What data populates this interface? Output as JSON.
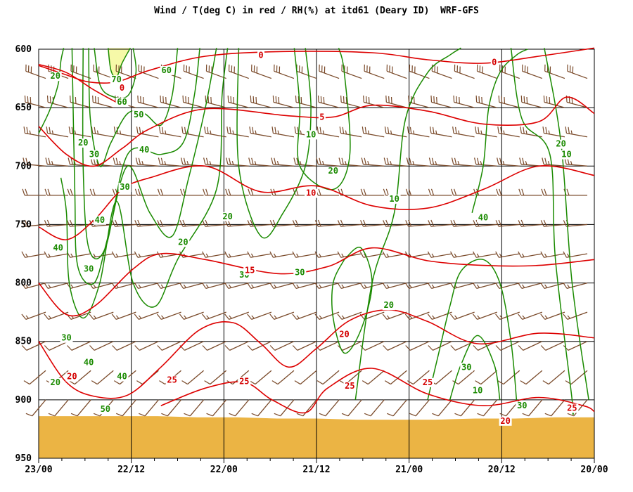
{
  "title": "Wind / T(deg C) in red / RH(%) at itd61 (Deary ID)  WRF-GFS",
  "colors": {
    "temperature": "#dd0000",
    "rh": "#1a8a00",
    "wind": "#7a4a2a",
    "terrain": "#ebb444",
    "saturated": "#f6f9a8",
    "grid": "#000000"
  },
  "chart_data": {
    "type": "time-height cross-section",
    "y_axis": {
      "unit": "hPa",
      "range": [
        950,
        600
      ],
      "ticks": [
        600,
        650,
        700,
        750,
        800,
        850,
        900,
        950
      ]
    },
    "x_axis": {
      "range_label": [
        "23/00",
        "20/00"
      ],
      "tick_labels": [
        "23/00",
        "22/12",
        "22/00",
        "21/12",
        "21/00",
        "20/12",
        "20/00"
      ]
    },
    "terrain_top_hPa": [
      914,
      914,
      914,
      914,
      915,
      915,
      916,
      916,
      917,
      917,
      917,
      916,
      916,
      915,
      915
    ],
    "temperature_contours": [
      {
        "value": -5,
        "points": [
          [
            0,
            613
          ],
          [
            5,
            620
          ],
          [
            10,
            635
          ],
          [
            15,
            648
          ]
        ]
      },
      {
        "value": 0,
        "points": [
          [
            0,
            614
          ],
          [
            5,
            622
          ],
          [
            9,
            628
          ],
          [
            14,
            628
          ],
          [
            20,
            618
          ],
          [
            30,
            606
          ],
          [
            44,
            602
          ],
          [
            60,
            603
          ],
          [
            70,
            609
          ],
          [
            80,
            612
          ],
          [
            90,
            606
          ],
          [
            100,
            599
          ]
        ]
      },
      {
        "value": 5,
        "points": [
          [
            0,
            666
          ],
          [
            5,
            690
          ],
          [
            10,
            700
          ],
          [
            15,
            685
          ],
          [
            20,
            668
          ],
          [
            30,
            651
          ],
          [
            45,
            657
          ],
          [
            53,
            658
          ],
          [
            60,
            648
          ],
          [
            70,
            653
          ],
          [
            80,
            664
          ],
          [
            90,
            662
          ],
          [
            95,
            641
          ],
          [
            100,
            655
          ]
        ]
      },
      {
        "value": 10,
        "points": [
          [
            0,
            752
          ],
          [
            5,
            763
          ],
          [
            10,
            746
          ],
          [
            15,
            720
          ],
          [
            20,
            710
          ],
          [
            30,
            700
          ],
          [
            40,
            722
          ],
          [
            50,
            717
          ],
          [
            60,
            734
          ],
          [
            70,
            736
          ],
          [
            80,
            720
          ],
          [
            90,
            700
          ],
          [
            100,
            708
          ]
        ]
      },
      {
        "value": 15,
        "points": [
          [
            0,
            800
          ],
          [
            5,
            827
          ],
          [
            10,
            820
          ],
          [
            17,
            788
          ],
          [
            22,
            775
          ],
          [
            30,
            780
          ],
          [
            43,
            792
          ],
          [
            52,
            786
          ],
          [
            60,
            770
          ],
          [
            70,
            781
          ],
          [
            80,
            785
          ],
          [
            90,
            785
          ],
          [
            100,
            780
          ]
        ]
      },
      {
        "value": 20,
        "points": [
          [
            0,
            850
          ],
          [
            5,
            885
          ],
          [
            10,
            897
          ],
          [
            16,
            896
          ],
          [
            22,
            872
          ],
          [
            29,
            840
          ],
          [
            35,
            834
          ],
          [
            40,
            852
          ],
          [
            45,
            872
          ],
          [
            50,
            856
          ],
          [
            56,
            832
          ],
          [
            63,
            823
          ],
          [
            70,
            833
          ],
          [
            79,
            852
          ],
          [
            90,
            843
          ],
          [
            100,
            847
          ]
        ]
      },
      {
        "value": 25,
        "points": [
          [
            22,
            905
          ],
          [
            30,
            890
          ],
          [
            37,
            885
          ],
          [
            42,
            900
          ],
          [
            48,
            911
          ],
          [
            52,
            890
          ],
          [
            60,
            873
          ],
          [
            70,
            895
          ],
          [
            80,
            905
          ],
          [
            90,
            898
          ],
          [
            98,
            905
          ],
          [
            100,
            910
          ]
        ]
      }
    ],
    "temperature_labels": [
      {
        "text": "0",
        "x": 15,
        "p": 633
      },
      {
        "text": "0",
        "x": 40,
        "p": 605
      },
      {
        "text": "0",
        "x": 82,
        "p": 611
      },
      {
        "text": "5",
        "x": 51,
        "p": 658
      },
      {
        "text": "10",
        "x": 49,
        "p": 723
      },
      {
        "text": "15",
        "x": 38,
        "p": 789
      },
      {
        "text": "20",
        "x": 6,
        "p": 880
      },
      {
        "text": "20",
        "x": 55,
        "p": 844
      },
      {
        "text": "25",
        "x": 24,
        "p": 883
      },
      {
        "text": "25",
        "x": 37,
        "p": 884
      },
      {
        "text": "25",
        "x": 56,
        "p": 888
      },
      {
        "text": "25",
        "x": 70,
        "p": 885
      },
      {
        "text": "25",
        "x": 96,
        "p": 907
      },
      {
        "text": "20",
        "x": 84,
        "p": 918
      }
    ],
    "rh_contours": [
      {
        "value": 70,
        "points": [
          [
            12.5,
            599
          ],
          [
            13,
            618
          ],
          [
            14,
            624
          ],
          [
            15,
            612
          ],
          [
            16.5,
            599
          ]
        ]
      },
      {
        "value": 60,
        "points": [
          [
            10,
            599
          ],
          [
            11,
            630
          ],
          [
            13,
            640
          ],
          [
            16,
            640
          ],
          [
            17.5,
            620
          ],
          [
            17,
            599
          ]
        ]
      },
      {
        "value": 20,
        "points": [
          [
            0,
            672
          ],
          [
            2,
            652
          ],
          [
            3.5,
            630
          ],
          [
            4,
            610
          ],
          [
            4.5,
            599
          ]
        ]
      },
      {
        "value": 50,
        "points": [
          [
            9,
            599
          ],
          [
            9.3,
            660
          ],
          [
            11,
            700
          ],
          [
            13,
            680
          ],
          [
            16,
            655
          ],
          [
            19,
            655
          ],
          [
            22,
            665
          ],
          [
            24,
            640
          ],
          [
            25,
            599
          ]
        ]
      },
      {
        "value": 40,
        "points": [
          [
            8,
            599
          ],
          [
            8,
            700
          ],
          [
            9,
            770
          ],
          [
            12,
            770
          ],
          [
            16,
            690
          ],
          [
            22,
            690
          ],
          [
            26,
            680
          ],
          [
            28,
            640
          ],
          [
            29,
            599
          ]
        ]
      },
      {
        "value": 30,
        "points": [
          [
            6,
            599
          ],
          [
            6.5,
            720
          ],
          [
            7,
            785
          ],
          [
            10,
            800
          ],
          [
            12.5,
            760
          ],
          [
            16,
            700
          ],
          [
            20,
            740
          ],
          [
            24,
            760
          ],
          [
            27,
            710
          ],
          [
            30,
            650
          ],
          [
            32,
            599
          ]
        ]
      },
      {
        "value": 20,
        "points": [
          [
            4,
            710
          ],
          [
            5,
            740
          ],
          [
            5.5,
            800
          ],
          [
            8,
            830
          ],
          [
            11,
            800
          ],
          [
            14,
            730
          ],
          [
            17,
            800
          ],
          [
            21,
            820
          ],
          [
            25,
            780
          ],
          [
            32,
            720
          ],
          [
            33,
            640
          ],
          [
            34,
            599
          ]
        ]
      },
      {
        "value": 10,
        "points": [
          [
            36,
            599
          ],
          [
            36,
            700
          ],
          [
            40,
            760
          ],
          [
            44,
            740
          ],
          [
            48,
            700
          ],
          [
            49,
            650
          ],
          [
            48,
            599
          ]
        ]
      },
      {
        "value": 20,
        "points": [
          [
            46,
            599
          ],
          [
            47,
            650
          ],
          [
            47,
            700
          ],
          [
            53,
            720
          ],
          [
            56,
            690
          ],
          [
            55,
            620
          ],
          [
            54,
            599
          ]
        ]
      },
      {
        "value": 10,
        "points": [
          [
            57,
            900
          ],
          [
            60,
            800
          ],
          [
            64,
            740
          ],
          [
            66,
            660
          ],
          [
            70,
            620
          ],
          [
            74,
            605
          ],
          [
            76,
            599
          ]
        ]
      },
      {
        "value": 20,
        "points": [
          [
            85,
            599
          ],
          [
            87,
            660
          ],
          [
            92,
            690
          ],
          [
            93,
            780
          ],
          [
            96,
            900
          ],
          [
            96,
            910
          ]
        ]
      },
      {
        "value": 10,
        "points": [
          [
            91,
            599
          ],
          [
            94,
            680
          ],
          [
            96,
            800
          ],
          [
            99,
            900
          ]
        ]
      },
      {
        "value": 40,
        "points": [
          [
            78,
            740
          ],
          [
            80,
            700
          ],
          [
            81,
            650
          ],
          [
            83,
            620
          ],
          [
            86,
            605
          ],
          [
            88,
            600
          ]
        ]
      },
      {
        "value": 30,
        "points": [
          [
            55,
            780
          ],
          [
            58,
            770
          ],
          [
            60,
            800
          ],
          [
            58,
            840
          ],
          [
            55,
            860
          ],
          [
            53,
            830
          ],
          [
            53,
            800
          ],
          [
            55,
            780
          ]
        ]
      },
      {
        "value": 30,
        "points": [
          [
            70,
            900
          ],
          [
            72,
            860
          ],
          [
            74,
            820
          ],
          [
            76,
            790
          ],
          [
            80,
            780
          ],
          [
            83,
            800
          ],
          [
            85,
            850
          ],
          [
            86,
            900
          ]
        ]
      },
      {
        "value": 40,
        "points": [
          [
            74,
            900
          ],
          [
            76,
            870
          ],
          [
            79,
            845
          ],
          [
            82,
            870
          ],
          [
            83,
            900
          ]
        ]
      }
    ],
    "rh_labels": [
      {
        "text": "70",
        "x": 14,
        "p": 626
      },
      {
        "text": "60",
        "x": 15,
        "p": 645
      },
      {
        "text": "60",
        "x": 23,
        "p": 618
      },
      {
        "text": "20",
        "x": 3,
        "p": 623
      },
      {
        "text": "50",
        "x": 18,
        "p": 656
      },
      {
        "text": "40",
        "x": 19,
        "p": 686
      },
      {
        "text": "20",
        "x": 8,
        "p": 680
      },
      {
        "text": "30",
        "x": 10,
        "p": 690
      },
      {
        "text": "30",
        "x": 15.5,
        "p": 718
      },
      {
        "text": "40",
        "x": 11,
        "p": 746
      },
      {
        "text": "40",
        "x": 3.5,
        "p": 770
      },
      {
        "text": "30",
        "x": 9,
        "p": 788
      },
      {
        "text": "20",
        "x": 26,
        "p": 765
      },
      {
        "text": "20",
        "x": 34,
        "p": 743
      },
      {
        "text": "30",
        "x": 37,
        "p": 793
      },
      {
        "text": "30",
        "x": 47,
        "p": 791
      },
      {
        "text": "10",
        "x": 49,
        "p": 673
      },
      {
        "text": "20",
        "x": 53,
        "p": 704
      },
      {
        "text": "10",
        "x": 64,
        "p": 728
      },
      {
        "text": "40",
        "x": 80,
        "p": 744
      },
      {
        "text": "20",
        "x": 94,
        "p": 681
      },
      {
        "text": "10",
        "x": 95,
        "p": 690
      },
      {
        "text": "20",
        "x": 63,
        "p": 819
      },
      {
        "text": "30",
        "x": 5,
        "p": 847
      },
      {
        "text": "40",
        "x": 9,
        "p": 868
      },
      {
        "text": "20",
        "x": 3,
        "p": 885
      },
      {
        "text": "40",
        "x": 15,
        "p": 880
      },
      {
        "text": "50",
        "x": 12,
        "p": 908
      },
      {
        "text": "30",
        "x": 77,
        "p": 872
      },
      {
        "text": "10",
        "x": 79,
        "p": 892
      },
      {
        "text": "30",
        "x": 87,
        "p": 905
      }
    ],
    "wind": {
      "levels_hPa": [
        625,
        650,
        675,
        700,
        725,
        750,
        775,
        800,
        825,
        850,
        875,
        900
      ],
      "columns": 25,
      "direction_deg": {
        "625": 290,
        "650": 285,
        "675": 280,
        "700": 275,
        "725": 270,
        "750": 265,
        "775": 260,
        "800": 255,
        "825": 250,
        "850": 245,
        "875": 230,
        "900": 220
      },
      "speed_kt": {
        "625": 30,
        "650": 30,
        "675": 25,
        "700": 25,
        "725": 20,
        "750": 20,
        "775": 15,
        "800": 15,
        "825": 15,
        "850": 10,
        "875": 10,
        "900": 10
      }
    }
  }
}
